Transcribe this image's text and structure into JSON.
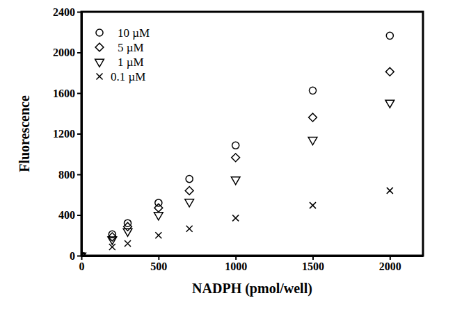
{
  "chart_data": {
    "type": "scatter",
    "x_label": "NADPH (pmol/well)",
    "y_label": "Fluorescence",
    "x": [
      0,
      200,
      300,
      500,
      700,
      1000,
      1500,
      2000
    ],
    "series": [
      {
        "name": "10 µM",
        "color": "#000000",
        "marker": "circle",
        "values": [
          0,
          210,
          320,
          520,
          755,
          1085,
          1625,
          2165
        ]
      },
      {
        "name": "5 µM",
        "color": "#000000",
        "marker": "diamond",
        "values": [
          0,
          185,
          285,
          470,
          640,
          965,
          1360,
          1810
        ]
      },
      {
        "name": "1 µM",
        "color": "#000000",
        "marker": "triangle-down",
        "values": [
          0,
          160,
          240,
          400,
          530,
          750,
          1140,
          1505
        ]
      },
      {
        "name": "0.1 µM",
        "color": "#000000",
        "marker": "x",
        "values": [
          0,
          85,
          120,
          200,
          265,
          370,
          495,
          640
        ]
      }
    ],
    "xlim": [
      0,
      2215
    ],
    "xticks": [
      0,
      500,
      1000,
      1500,
      2000
    ],
    "ylim": [
      0,
      2400
    ],
    "yticks": [
      0,
      400,
      800,
      1200,
      1600,
      2000,
      2400
    ],
    "grid": false,
    "legend": "upper left"
  }
}
